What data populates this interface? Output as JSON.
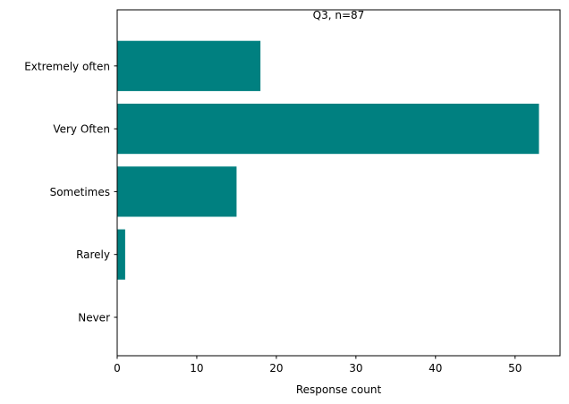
{
  "chart_data": {
    "type": "bar",
    "orientation": "horizontal",
    "title": "Q3, n=87",
    "xlabel": "Response count",
    "ylabel": "",
    "categories": [
      "Extremely often",
      "Very Often",
      "Sometimes",
      "Rarely",
      "Never"
    ],
    "values": [
      18,
      53,
      15,
      1,
      0
    ],
    "xlim": [
      0,
      55.65
    ],
    "xticks": [
      0,
      10,
      20,
      30,
      40,
      50
    ],
    "grid": false,
    "bar_color": "#008080"
  }
}
